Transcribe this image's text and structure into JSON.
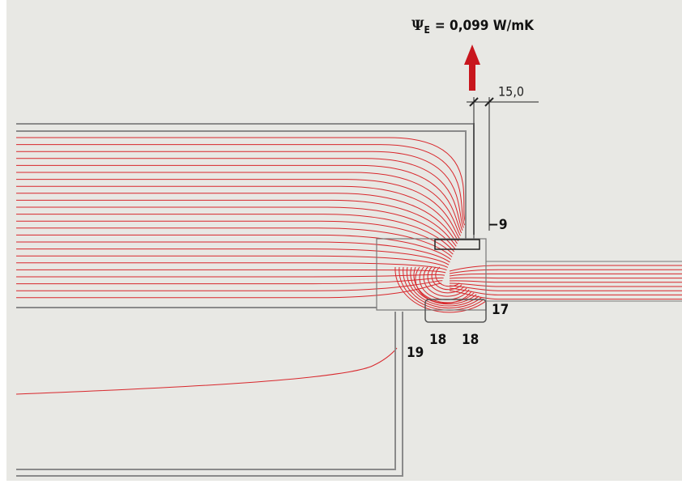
{
  "header": {
    "symbol": "Ψ",
    "subscript": "E",
    "value": "= 0,099 W/mK"
  },
  "dimension": "15,0",
  "temperatures": [
    {
      "label": "−9"
    },
    {
      "label": "17"
    },
    {
      "label": "18"
    },
    {
      "label": "18"
    },
    {
      "label": "19"
    }
  ]
}
